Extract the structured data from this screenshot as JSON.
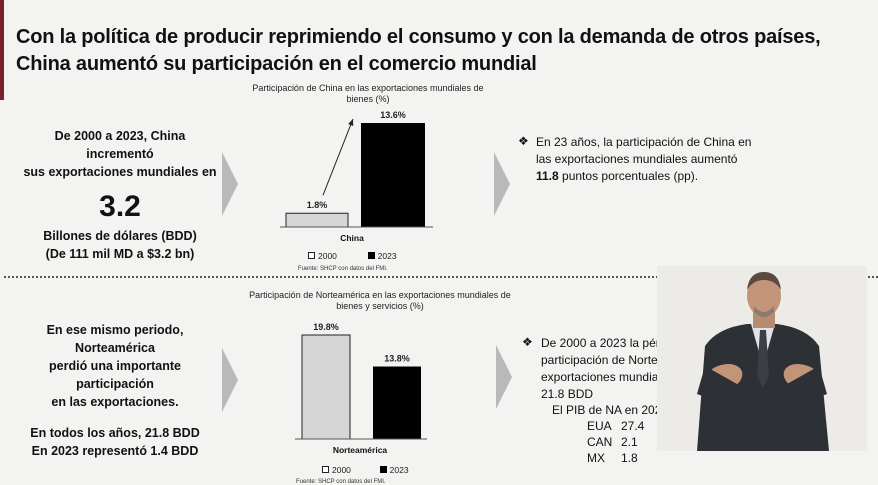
{
  "title": {
    "line1": "Con la política de producir reprimiendo el consumo y con la demanda de otros países,",
    "line2": "China aumentó su participación en el comercio mundial"
  },
  "top": {
    "left_text_1": "De 2000 a 2023, China incrementó",
    "left_text_2": "sus exportaciones mundiales en",
    "big_value": "3.2",
    "unit_1": "Billones de dólares (BDD)",
    "unit_2": "(De 111 mil MD a $3.2 bn)",
    "bullet_line1": "En 23 años, la participación de China en",
    "bullet_line2": "las exportaciones mundiales aumentó",
    "bullet_bold": "11.8",
    "bullet_line3_rest": " puntos porcentuales (pp)."
  },
  "bottom": {
    "left_text_1": "En ese mismo periodo, Norteamérica",
    "left_text_2": "perdió una importante participación",
    "left_text_3": "en las exportaciones.",
    "left_text_4": "En todos los años, 21.8 BDD",
    "left_text_5": "En 2023 representó 1.4 BDD",
    "bullet_line1": "De 2000 a 2023 la pér",
    "bullet_line2": "participación de Norte",
    "bullet_line3": "exportaciones mundia",
    "bullet_line4": "21.8 BDD",
    "pib_label": "El PIB de NA en 202",
    "pib_rows": [
      {
        "country": "EUA",
        "value": "27.4"
      },
      {
        "country": "CAN",
        "value": "2.1"
      },
      {
        "country": "MX",
        "value": "1.8"
      }
    ]
  },
  "chart_data": [
    {
      "type": "bar",
      "title": "Participación de China en las exportaciones mundiales de bienes (%)",
      "categories": [
        "China"
      ],
      "series": [
        {
          "name": "2000",
          "values": [
            1.8
          ],
          "label": "1.8%"
        },
        {
          "name": "2023",
          "values": [
            13.6
          ],
          "label": "13.6%"
        }
      ],
      "legend": "bottom",
      "source": "Fuente: SHCP con datos del FMI."
    },
    {
      "type": "bar",
      "title": "Participación de Norteamérica en las exportaciones mundiales de bienes y servicios (%)",
      "categories": [
        "Norteamérica"
      ],
      "series": [
        {
          "name": "2000",
          "values": [
            19.8
          ],
          "label": "19.8%"
        },
        {
          "name": "2023",
          "values": [
            13.8
          ],
          "label": "13.8%"
        }
      ],
      "legend": "bottom",
      "source": "Fuente: SHCP con datos del FMI."
    }
  ],
  "colors": {
    "bar_2000": "#d6d6d6",
    "bar_2023": "#000000",
    "chevron": "#b9b9b9",
    "accent": "#7a1f2b"
  },
  "icons": {
    "bullet": "diamond-bullet-icon",
    "arrow": "chevron-right-icon"
  }
}
